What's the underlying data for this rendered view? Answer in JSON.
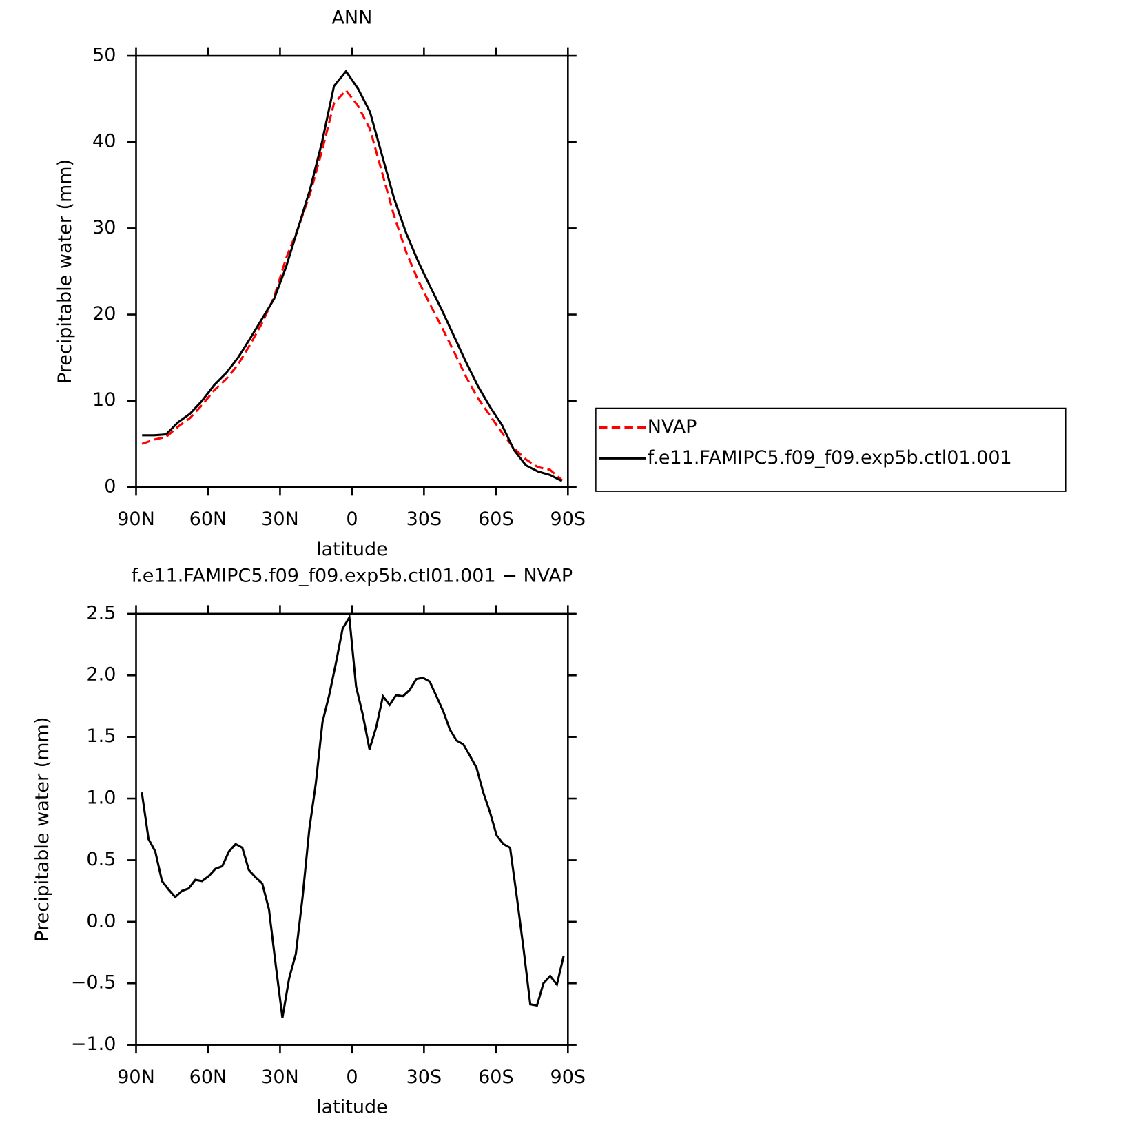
{
  "chart_data": [
    {
      "type": "line",
      "title": "ANN",
      "xlabel": "latitude",
      "ylabel": "Precipitable water (mm)",
      "x": [
        87.5,
        82.5,
        77.5,
        72.5,
        67.5,
        62.5,
        57.5,
        52.5,
        47.5,
        42.5,
        37.5,
        32.5,
        27.5,
        22.5,
        17.5,
        12.5,
        7.5,
        2.5,
        -2.5,
        -7.5,
        -12.5,
        -17.5,
        -22.5,
        -27.5,
        -32.5,
        -37.5,
        -42.5,
        -47.5,
        -52.5,
        -57.5,
        -62.5,
        -67.5,
        -72.5,
        -77.5,
        -82.5,
        -87.5
      ],
      "series": [
        {
          "name": "NVAP",
          "color": "#ff0000",
          "line_style": "dashed",
          "values": [
            5.0,
            5.5,
            5.8,
            7.0,
            8.0,
            9.5,
            11.2,
            12.5,
            14.2,
            16.5,
            19.0,
            22.0,
            26.5,
            30.0,
            34.0,
            39.0,
            44.5,
            46.0,
            44.2,
            41.5,
            36.5,
            31.5,
            27.3,
            24.0,
            21.2,
            18.5,
            15.7,
            12.8,
            10.3,
            8.3,
            6.3,
            4.5,
            3.2,
            2.3,
            2.0,
            0.8
          ]
        },
        {
          "name": "f.e11.FAMIPC5.f09_f09.exp5b.ctl01.001",
          "color": "#000000",
          "line_style": "solid",
          "values": [
            6.0,
            6.0,
            6.1,
            7.5,
            8.5,
            10.0,
            11.8,
            13.2,
            15.0,
            17.2,
            19.5,
            21.8,
            25.5,
            30.0,
            34.5,
            40.0,
            46.5,
            48.2,
            46.2,
            43.5,
            38.5,
            33.5,
            29.5,
            26.2,
            23.3,
            20.5,
            17.5,
            14.5,
            11.7,
            9.3,
            7.2,
            4.3,
            2.5,
            1.8,
            1.4,
            0.7
          ]
        }
      ],
      "xlim": [
        90,
        -90
      ],
      "xticks": [
        {
          "value": 90,
          "label": "90N"
        },
        {
          "value": 60,
          "label": "60N"
        },
        {
          "value": 30,
          "label": "30N"
        },
        0,
        {
          "value": -30,
          "label": "30S"
        },
        {
          "value": -60,
          "label": "60S"
        },
        {
          "value": -90,
          "label": "90S"
        }
      ],
      "ylim": [
        0,
        50
      ],
      "yticks": [
        0,
        10,
        20,
        30,
        40,
        50
      ],
      "legend": "right"
    },
    {
      "type": "line",
      "title": "f.e11.FAMIPC5.f09_f09.exp5b.ctl01.001 − NVAP",
      "xlabel": "latitude",
      "ylabel": "Precipitable water (mm)",
      "x": [
        87.6,
        84.8,
        82.0,
        79.2,
        76.4,
        73.7,
        70.9,
        68.1,
        65.3,
        62.5,
        59.7,
        56.9,
        54.1,
        51.3,
        48.5,
        45.7,
        43.0,
        40.2,
        37.4,
        34.6,
        31.8,
        29.0,
        26.2,
        23.4,
        20.6,
        17.8,
        15.1,
        12.3,
        9.5,
        6.7,
        3.9,
        1.1,
        -1.7,
        -4.5,
        -7.3,
        -10.1,
        -12.9,
        -15.7,
        -18.4,
        -21.2,
        -24.0,
        -26.8,
        -29.6,
        -32.4,
        -35.2,
        -38.0,
        -40.8,
        -43.6,
        -46.4,
        -49.1,
        -51.9,
        -54.7,
        -57.5,
        -60.3,
        -63.1,
        -65.9,
        -68.7,
        -71.5,
        -74.3,
        -77.1,
        -79.8,
        -82.6,
        -85.4,
        -88.2
      ],
      "series": [
        {
          "color": "#000000",
          "line_style": "solid",
          "values": [
            1.05,
            0.67,
            0.57,
            0.33,
            0.26,
            0.2,
            0.25,
            0.27,
            0.34,
            0.33,
            0.37,
            0.43,
            0.45,
            0.57,
            0.63,
            0.6,
            0.42,
            0.36,
            0.31,
            0.1,
            -0.35,
            -0.78,
            -0.46,
            -0.26,
            0.2,
            0.75,
            1.12,
            1.62,
            1.84,
            2.1,
            2.38,
            2.47,
            1.91,
            1.68,
            1.4,
            1.58,
            1.83,
            1.76,
            1.84,
            1.83,
            1.88,
            1.97,
            1.98,
            1.95,
            1.83,
            1.71,
            1.56,
            1.47,
            1.44,
            1.35,
            1.25,
            1.05,
            0.89,
            0.7,
            0.63,
            0.6,
            0.2,
            -0.22,
            -0.67,
            -0.68,
            -0.5,
            -0.44,
            -0.51,
            -0.28
          ]
        }
      ],
      "xlim": [
        90,
        -90
      ],
      "xticks": [
        {
          "value": 90,
          "label": "90N"
        },
        {
          "value": 60,
          "label": "60N"
        },
        {
          "value": 30,
          "label": "30N"
        },
        0,
        {
          "value": -30,
          "label": "30S"
        },
        {
          "value": -60,
          "label": "60S"
        },
        {
          "value": -90,
          "label": "90S"
        }
      ],
      "ylim": [
        -1.0,
        2.5
      ],
      "yticks": [
        {
          "value": -1.0,
          "label": "−1.0"
        },
        {
          "value": -0.5,
          "label": "−0.5"
        },
        {
          "value": 0.0,
          "label": "0.0"
        },
        0.5,
        {
          "value": 1.0,
          "label": "1.0"
        },
        1.5,
        {
          "value": 2.0,
          "label": "2.0"
        },
        2.5
      ]
    }
  ]
}
